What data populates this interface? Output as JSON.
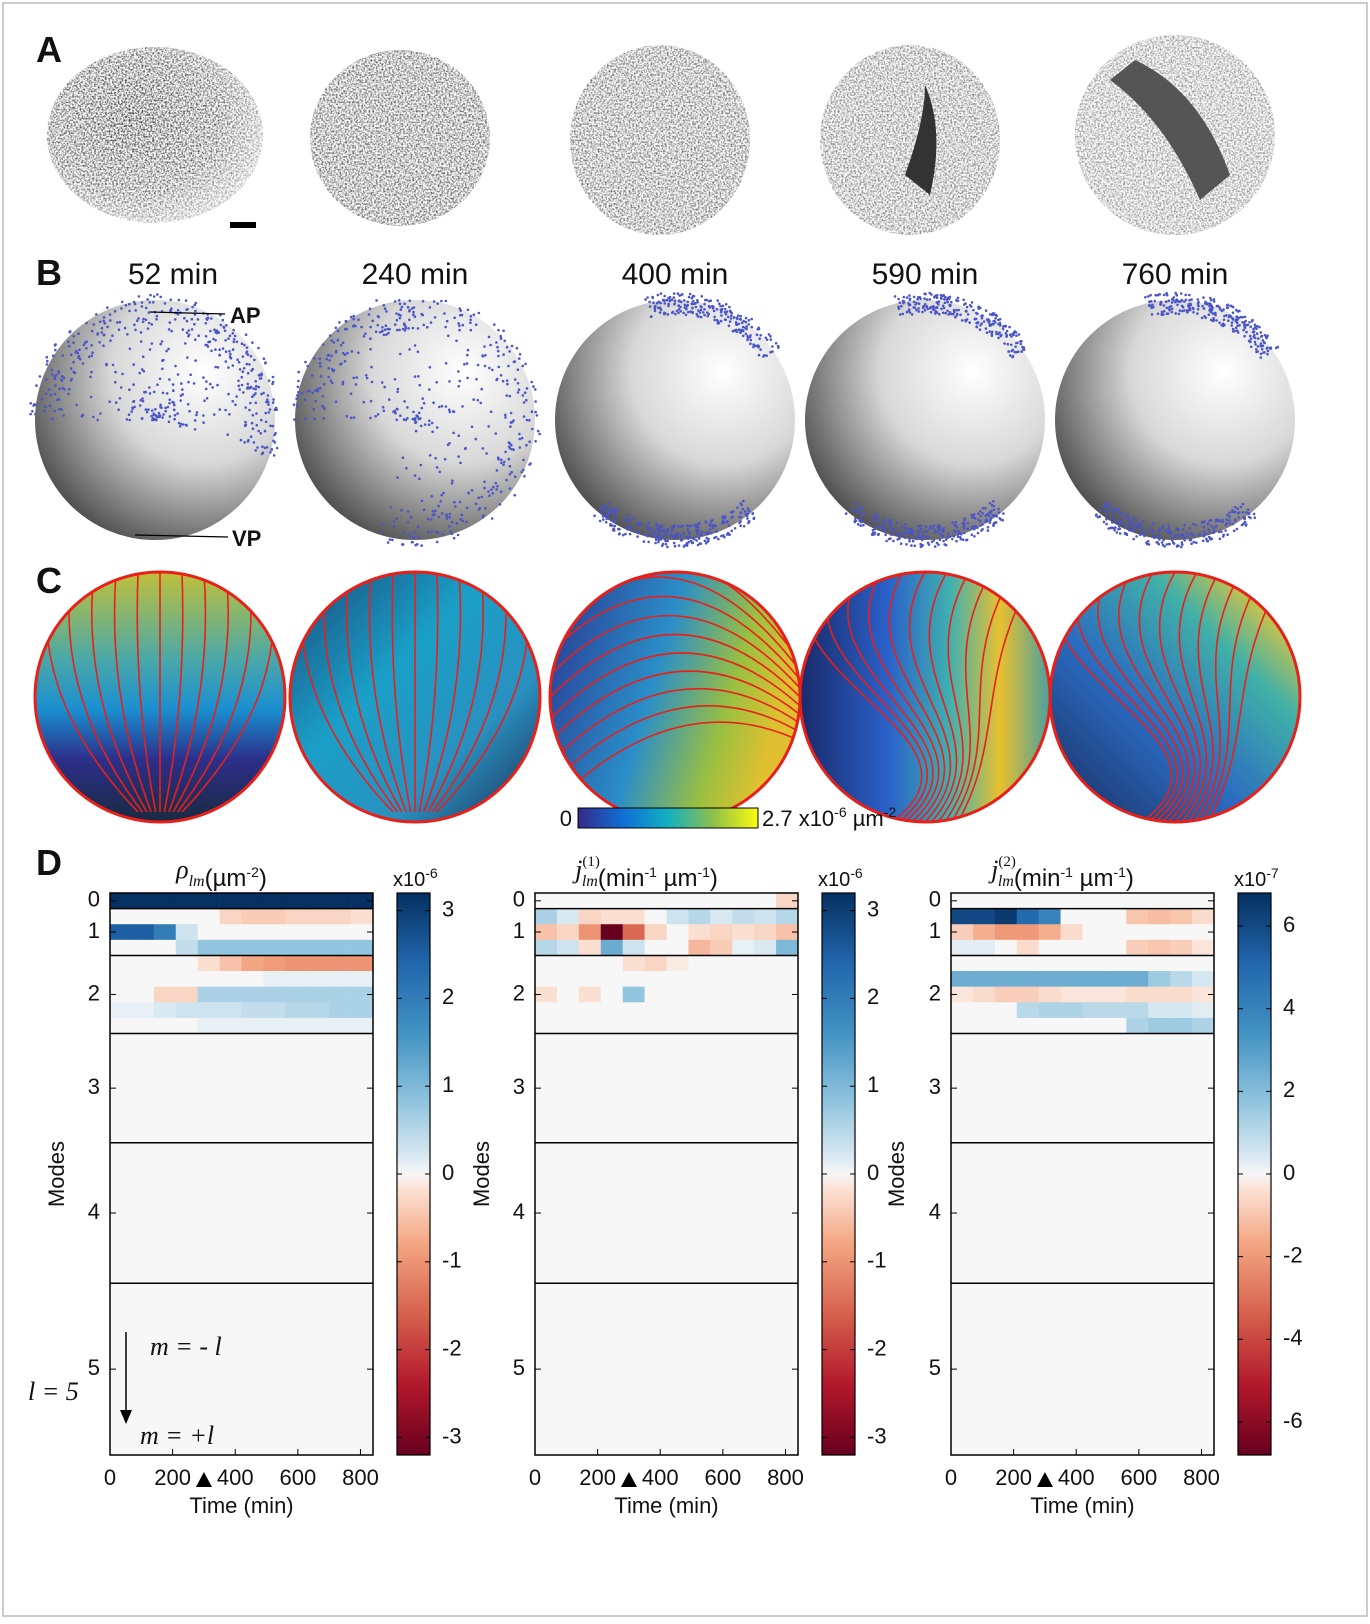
{
  "panel_labels": [
    "A",
    "B",
    "C",
    "D"
  ],
  "times": [
    "52 min",
    "240 min",
    "400 min",
    "590 min",
    "760 min"
  ],
  "poles": {
    "ap": "AP",
    "vp": "VP"
  },
  "sphere_colorbar": {
    "min": 0,
    "max_label": "2.7 x10",
    "max_exp": "-6",
    "unit": " µm",
    "unit_exp": "-2"
  },
  "chart_data": [
    {
      "type": "heatmap",
      "title": {
        "symbol": "ρ",
        "sub": "lm",
        "unit": [
          {
            "text": "(µm"
          },
          {
            "sup": "-2"
          },
          {
            "text": ")"
          }
        ]
      },
      "x_label": "Time (min)",
      "y_label": "Modes",
      "xlim": [
        0,
        840
      ],
      "xticks": [
        0,
        200,
        400,
        600,
        800
      ],
      "marker_time": 300,
      "ylim": [
        -0.5,
        35.5
      ],
      "yticks": [
        0,
        {
          "value": 2,
          "label": "1"
        },
        {
          "value": 6,
          "label": "2"
        },
        {
          "value": 12,
          "label": "3"
        },
        {
          "value": 20,
          "label": "4"
        },
        {
          "value": 30,
          "label": "5"
        }
      ],
      "time_edges": [
        0,
        70,
        140,
        210,
        280,
        350,
        420,
        490,
        560,
        630,
        700,
        770,
        840
      ],
      "z": [
        [
          3.2,
          3.2,
          3.2,
          3.2,
          3.2,
          3.2,
          3.2,
          3.2,
          3.2,
          3.2,
          3.2,
          3.2
        ],
        [
          0,
          0,
          0,
          0,
          0,
          -0.3,
          -0.4,
          -0.4,
          -0.3,
          -0.3,
          -0.3,
          -0.2
        ],
        [
          2.5,
          2.5,
          2.0,
          0.3,
          0,
          0,
          0,
          0,
          0,
          0,
          0,
          0
        ],
        [
          0,
          0,
          0,
          0.4,
          0.8,
          0.8,
          0.8,
          0.8,
          0.8,
          0.8,
          0.8,
          0.8
        ],
        [
          0,
          0,
          0,
          0,
          -0.2,
          -0.5,
          -0.8,
          -0.9,
          -1.0,
          -1.0,
          -1.0,
          -1.0
        ],
        [
          0,
          0,
          0,
          0,
          0,
          0,
          0,
          0.1,
          0.1,
          0.1,
          0.1,
          0.1
        ],
        [
          0,
          0,
          -0.3,
          -0.3,
          0.6,
          0.6,
          0.6,
          0.6,
          0.6,
          0.6,
          0.6,
          0.6
        ],
        [
          0.1,
          0.1,
          0.2,
          0.3,
          0.3,
          0.3,
          0.4,
          0.4,
          0.5,
          0.5,
          0.6,
          0.6
        ],
        [
          0,
          0,
          0,
          0,
          0.1,
          0.1,
          0.1,
          0.1,
          0.1,
          0.1,
          0.1,
          0.1
        ]
      ],
      "colorbar": {
        "clim": [
          -3.2,
          3.2
        ],
        "ticks": [
          -3,
          -2,
          -1,
          0,
          1,
          2,
          3
        ],
        "exp_base": "x10",
        "exp_power": "-6"
      },
      "annotations": {
        "m_top": "m = - l",
        "l_label": "l = 5",
        "m_bottom": "m = +l"
      }
    },
    {
      "type": "heatmap",
      "title": {
        "symbol": "j",
        "sup": "(1)",
        "sub": "lm",
        "unit": [
          {
            "text": "(min"
          },
          {
            "sup": "-1"
          },
          {
            "text": " µm"
          },
          {
            "sup": "-1"
          },
          {
            "text": ")"
          }
        ]
      },
      "x_label": "Time (min)",
      "y_label": "Modes",
      "xlim": [
        0,
        840
      ],
      "xticks": [
        0,
        200,
        400,
        600,
        800
      ],
      "marker_time": 300,
      "ylim": [
        -0.5,
        35.5
      ],
      "yticks": [
        0,
        {
          "value": 2,
          "label": "1"
        },
        {
          "value": 6,
          "label": "2"
        },
        {
          "value": 12,
          "label": "3"
        },
        {
          "value": 20,
          "label": "4"
        },
        {
          "value": 30,
          "label": "5"
        }
      ],
      "time_edges": [
        0,
        70,
        140,
        210,
        280,
        350,
        420,
        490,
        560,
        630,
        700,
        770,
        840
      ],
      "z": [
        [
          0,
          0,
          0,
          0,
          0,
          0,
          0,
          0,
          0,
          0,
          0,
          -0.3
        ],
        [
          0.6,
          0.2,
          -0.3,
          -0.2,
          -0.2,
          0,
          0.3,
          0.5,
          0.2,
          0.4,
          0.3,
          0.5
        ],
        [
          -0.5,
          -0.3,
          -1.0,
          -3.2,
          -1.5,
          -0.3,
          0,
          -0.2,
          -0.3,
          -0.2,
          -0.3,
          -0.5
        ],
        [
          0.5,
          0.3,
          -0.2,
          1.2,
          0.3,
          0,
          0,
          -0.6,
          -0.4,
          0.1,
          0.2,
          1.0
        ],
        [
          0,
          0,
          0,
          0,
          -0.2,
          -0.3,
          -0.1,
          0,
          0,
          0,
          0,
          0
        ],
        [
          0,
          0,
          0,
          0,
          0,
          0,
          0,
          0,
          0,
          0,
          0,
          0
        ],
        [
          -0.2,
          0,
          -0.2,
          0,
          0.8,
          0,
          0,
          0,
          0,
          0,
          0,
          0
        ],
        [
          0,
          0,
          0,
          0,
          0,
          0,
          0,
          0,
          0,
          0,
          0,
          0
        ],
        [
          0,
          0,
          0,
          0,
          0,
          0,
          0,
          0,
          0,
          0,
          0,
          0
        ]
      ],
      "colorbar": {
        "clim": [
          -3.2,
          3.2
        ],
        "ticks": [
          -3,
          -2,
          -1,
          0,
          1,
          2,
          3
        ],
        "exp_base": "x10",
        "exp_power": "-6"
      }
    },
    {
      "type": "heatmap",
      "title": {
        "symbol": "j",
        "sup": "(2)",
        "sub": "lm",
        "unit": [
          {
            "text": "(min"
          },
          {
            "sup": "-1"
          },
          {
            "text": " µm"
          },
          {
            "sup": "-1"
          },
          {
            "text": ")"
          }
        ]
      },
      "x_label": "Time (min)",
      "y_label": "Modes",
      "xlim": [
        0,
        840
      ],
      "xticks": [
        0,
        200,
        400,
        600,
        800
      ],
      "marker_time": 300,
      "ylim": [
        -0.5,
        35.5
      ],
      "yticks": [
        0,
        {
          "value": 2,
          "label": "1"
        },
        {
          "value": 6,
          "label": "2"
        },
        {
          "value": 12,
          "label": "3"
        },
        {
          "value": 20,
          "label": "4"
        },
        {
          "value": 30,
          "label": "5"
        }
      ],
      "time_edges": [
        0,
        70,
        140,
        210,
        280,
        350,
        420,
        490,
        560,
        630,
        700,
        770,
        840
      ],
      "z": [
        [
          0,
          0,
          0,
          0,
          0,
          0,
          0,
          0,
          0,
          0,
          0,
          0
        ],
        [
          6,
          6,
          6.5,
          5,
          4,
          0,
          0,
          0,
          -1,
          -1.2,
          -1,
          -0.5
        ],
        [
          -0.8,
          -1.5,
          -2,
          -2,
          -1.5,
          -0.5,
          0,
          0,
          0,
          0,
          0,
          0
        ],
        [
          0.3,
          0.3,
          0,
          -0.5,
          0,
          0,
          0,
          0,
          -0.8,
          -1,
          -0.8,
          -0.3
        ],
        [
          0,
          0,
          0,
          0,
          0,
          0,
          0,
          0,
          0,
          0,
          0,
          0
        ],
        [
          2.5,
          2.5,
          2.5,
          2.5,
          2.5,
          2.5,
          2.5,
          2.5,
          2.5,
          1.5,
          1,
          0.5
        ],
        [
          -0.3,
          -0.5,
          -0.8,
          -0.8,
          -0.5,
          -0.3,
          -0.3,
          -0.3,
          -0.5,
          -0.5,
          -0.5,
          -0.3
        ],
        [
          0,
          0,
          0,
          1,
          1.2,
          1.2,
          1,
          1,
          1,
          0.5,
          0.5,
          0.3
        ],
        [
          0,
          0,
          0,
          0,
          0,
          0,
          0,
          0,
          1.2,
          1.5,
          1.5,
          1.2
        ]
      ],
      "colorbar": {
        "clim": [
          -6.8,
          6.8
        ],
        "ticks": [
          -6,
          -4,
          -2,
          0,
          2,
          4,
          6
        ],
        "exp_base": "x10",
        "exp_power": "-7"
      }
    }
  ]
}
